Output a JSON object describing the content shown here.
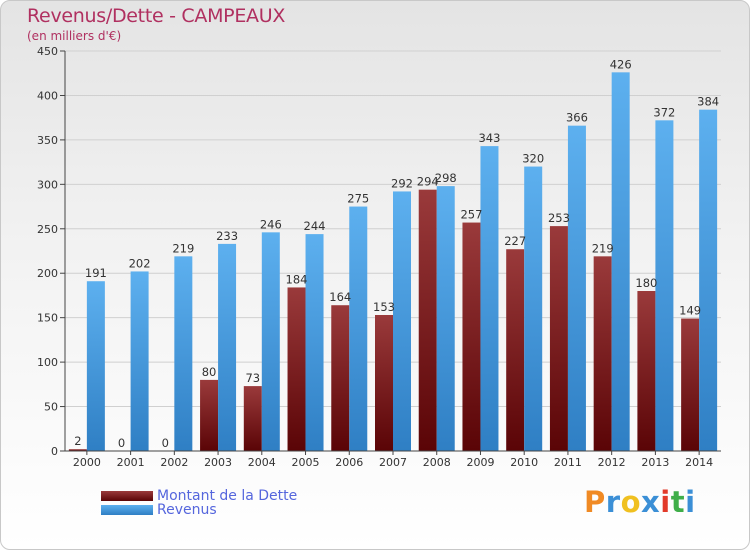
{
  "title": "Revenus/Dette - CAMPEAUX",
  "subtitle": "(en milliers d'€)",
  "legend": [
    {
      "label": "Montant de la Dette",
      "color": "#6b0f10"
    },
    {
      "label": "Revenus",
      "color": "#4aa0e0"
    }
  ],
  "logo": {
    "letters": [
      "P",
      "r",
      "o",
      "x",
      "i",
      "t",
      "i"
    ],
    "colors": [
      "#f08a24",
      "#3b8fd6",
      "#f0c020",
      "#3b8fd6",
      "#e23a2a",
      "#3fae49",
      "#3b8fd6"
    ]
  },
  "chart_data": {
    "type": "bar",
    "title": "Revenus/Dette - CAMPEAUX",
    "ylabel": "(en milliers d'€)",
    "xlabel": "",
    "ylim": [
      0,
      450
    ],
    "yticks": [
      0,
      50,
      100,
      150,
      200,
      250,
      300,
      350,
      400,
      450
    ],
    "grid": true,
    "categories": [
      "2000",
      "2001",
      "2002",
      "2003",
      "2004",
      "2005",
      "2006",
      "2007",
      "2008",
      "2009",
      "2010",
      "2011",
      "2012",
      "2013",
      "2014"
    ],
    "series": [
      {
        "name": "Montant de la Dette",
        "color": "#7a1b1c",
        "values": [
          2,
          0,
          0,
          80,
          73,
          184,
          164,
          153,
          294,
          257,
          227,
          253,
          219,
          180,
          149
        ]
      },
      {
        "name": "Revenus",
        "color": "#4aa0e0",
        "values": [
          191,
          202,
          219,
          233,
          246,
          244,
          275,
          292,
          298,
          343,
          320,
          366,
          426,
          372,
          384
        ]
      }
    ]
  }
}
